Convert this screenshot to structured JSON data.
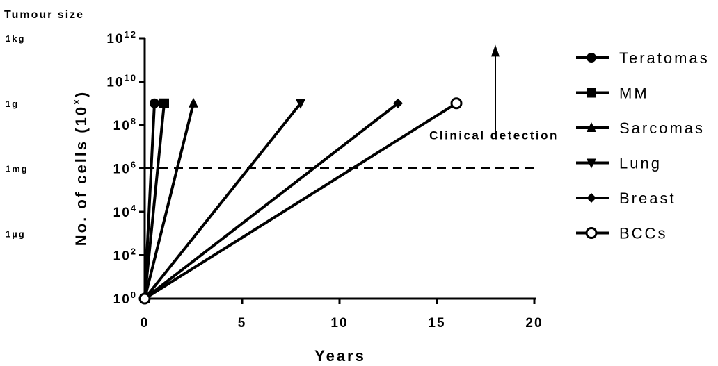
{
  "chart_data": {
    "type": "line",
    "title": "",
    "xlabel": "Years",
    "ylabel": "No. of cells (10",
    "ylabel_sup": "x",
    "ylabel_close": ")",
    "xlim": [
      0,
      20
    ],
    "ylim": [
      0,
      12
    ],
    "y_scale": "log10",
    "x_ticks": [
      0,
      5,
      10,
      15,
      20
    ],
    "x_tick_labels": [
      "0",
      "5",
      "10",
      "15",
      "20"
    ],
    "y_ticks": [
      0,
      2,
      4,
      6,
      8,
      10,
      12
    ],
    "y_tick_base": "10",
    "y_tick_exponents": [
      "0",
      "2",
      "4",
      "6",
      "8",
      "10",
      "12"
    ],
    "grid": false,
    "legend_position": "right",
    "series": [
      {
        "name": "Teratomas",
        "marker": "circle",
        "x": [
          0,
          0.5
        ],
        "y": [
          0,
          9
        ]
      },
      {
        "name": "MM",
        "marker": "square",
        "x": [
          0,
          1
        ],
        "y": [
          0,
          9
        ]
      },
      {
        "name": "Sarcomas",
        "marker": "triangle-up",
        "x": [
          0,
          2.5
        ],
        "y": [
          0,
          9
        ]
      },
      {
        "name": "Lung",
        "marker": "triangle-down",
        "x": [
          0,
          8
        ],
        "y": [
          0,
          9
        ]
      },
      {
        "name": "Breast",
        "marker": "diamond",
        "x": [
          0,
          13
        ],
        "y": [
          0,
          9
        ]
      },
      {
        "name": "BCCs",
        "marker": "open-circle",
        "x": [
          0,
          16
        ],
        "y": [
          0,
          9
        ]
      }
    ],
    "threshold": {
      "label": "Clinical detection",
      "y": 6,
      "style": "dashed"
    },
    "annotation_arrow": {
      "x": 18,
      "y_from": 7.5,
      "y_to": 11.7
    },
    "secondary_axis": {
      "title": "Tumour size",
      "labels": [
        {
          "text": "1kg",
          "y": 12
        },
        {
          "text": "1g",
          "y": 9
        },
        {
          "text": "1mg",
          "y": 6
        },
        {
          "text": "1µg",
          "y": 3
        }
      ]
    }
  }
}
